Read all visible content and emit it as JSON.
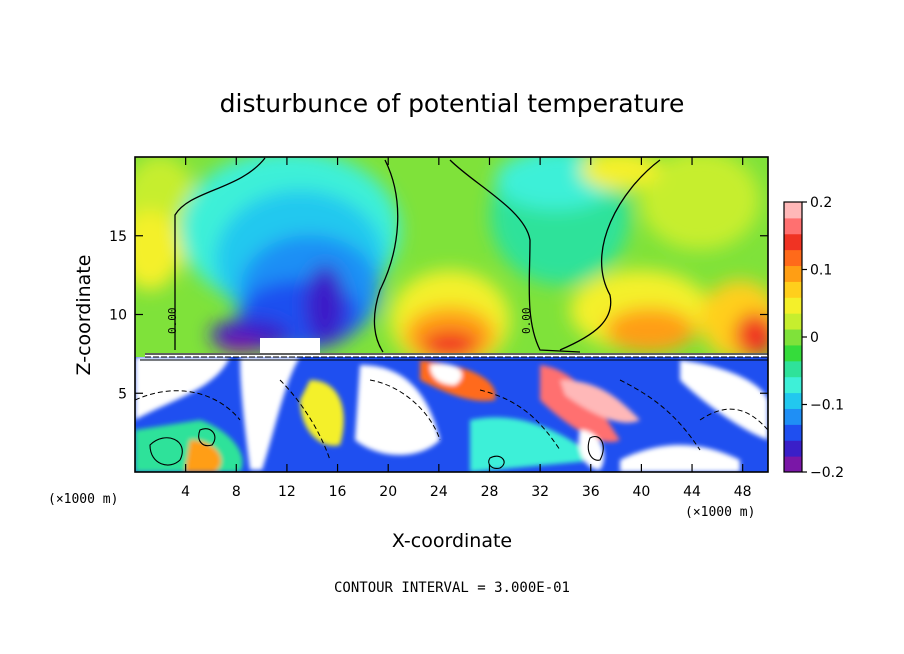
{
  "chart_data": {
    "type": "heatmap",
    "title": "disturbunce of potential temperature",
    "xlabel": "X-coordinate",
    "ylabel": "Z-coordinate",
    "x_unit": "(×1000 m)",
    "y_unit": "(×1000 m)",
    "xlim": [
      0,
      50
    ],
    "ylim": [
      0,
      20
    ],
    "x_ticks": [
      "4",
      "8",
      "12",
      "16",
      "20",
      "24",
      "28",
      "32",
      "36",
      "40",
      "44",
      "48"
    ],
    "y_ticks": [
      "5",
      "10",
      "15"
    ],
    "contour_label": "0.00",
    "colorbar": {
      "min": -0.2,
      "max": 0.2,
      "tick_labels": [
        "0.2",
        "0.1",
        "0",
        "−0.1",
        "−0.2"
      ],
      "colors": [
        "#7a17a7",
        "#3a1fc8",
        "#1f4ff0",
        "#1f8ff5",
        "#22c8ef",
        "#3ef0d8",
        "#2fe29a",
        "#35dc3b",
        "#7fe23a",
        "#c6ee2e",
        "#f4f02a",
        "#ffcf1c",
        "#ff9e14",
        "#ff6a1a",
        "#f03323",
        "#ff7070",
        "#ffb8b8"
      ]
    },
    "footnote": "CONTOUR INTERVAL = 3.000E-01"
  }
}
